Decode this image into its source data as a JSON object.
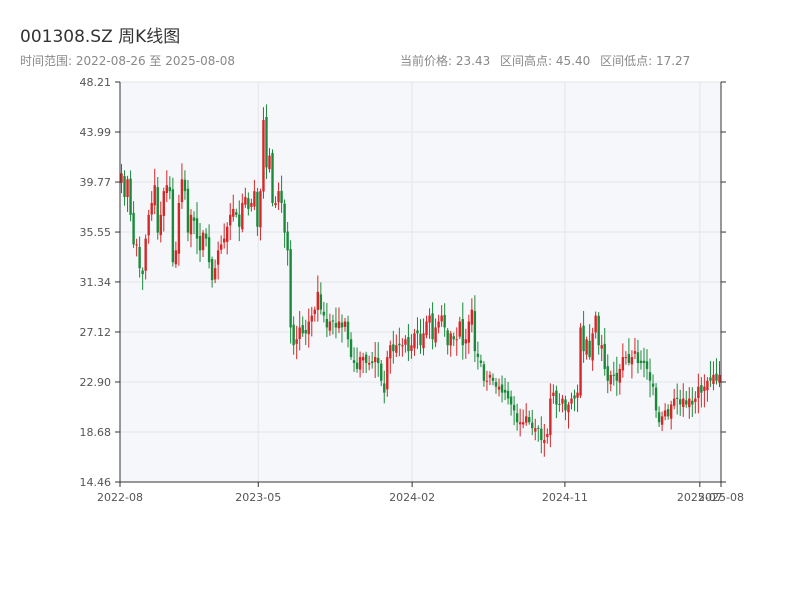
{
  "header": {
    "title": "001308.SZ 周K线图",
    "range_text": "时间范围: 2022-08-26 至 2025-08-08",
    "current_price_text": "当前价格: 23.43",
    "high_text": "区间高点: 45.40",
    "low_text": "区间低点: 17.27"
  },
  "colors": {
    "up": "#d62728",
    "down": "#1a8a3a",
    "plot_bg": "#f5f7fa",
    "grid": "#e3e6ea",
    "axis": "#333333"
  },
  "chart_data": {
    "type": "candlestick",
    "title": "001308.SZ 周K线图",
    "xlabel": "",
    "ylabel": "",
    "ylim": [
      14.46,
      48.21
    ],
    "x_range": [
      "2022-08-26",
      "2025-08-08"
    ],
    "grid": true,
    "y_ticks": [
      "14.46",
      "18.68",
      "22.90",
      "27.12",
      "31.34",
      "35.55",
      "39.77",
      "43.99",
      "48.21"
    ],
    "x_ticks": [
      {
        "label": "2022-08",
        "date": "2022-08-26"
      },
      {
        "label": "2023-05",
        "date": "2023-05-01"
      },
      {
        "label": "2024-02",
        "date": "2024-02-01"
      },
      {
        "label": "2024-11",
        "date": "2024-11-01"
      },
      {
        "label": "2025-07",
        "date": "2025-07-01"
      },
      {
        "label": "2025-08",
        "date": "2025-08-08"
      }
    ],
    "weekly_close": [
      40.5,
      38.5,
      40,
      37,
      34.5,
      34.5,
      32.5,
      32,
      35,
      37,
      38,
      39.5,
      35.5,
      37,
      39,
      39.5,
      39,
      33,
      34,
      38,
      40,
      39,
      35.5,
      37,
      36.5,
      35,
      34,
      35.5,
      35,
      33,
      31.5,
      32.5,
      34,
      34.5,
      35,
      36,
      37,
      37.5,
      37,
      36,
      38,
      38.5,
      37.5,
      38,
      39,
      36,
      39,
      45,
      41,
      42,
      38,
      38,
      39,
      38,
      35.5,
      34,
      27.5,
      26,
      26.5,
      27.5,
      27,
      27,
      28,
      28.5,
      29,
      30.5,
      29,
      28.5,
      27.5,
      28,
      28,
      27.5,
      28,
      27.5,
      28,
      26.5,
      25,
      24.5,
      24,
      25,
      25,
      24.5,
      24.5,
      24.5,
      25,
      24.5,
      23,
      22,
      25,
      26,
      25.5,
      26,
      26,
      26,
      26.5,
      25.5,
      26,
      27,
      27,
      26,
      27,
      28,
      28.5,
      26.5,
      27.5,
      28,
      28.5,
      27.5,
      26,
      27,
      26.5,
      26.5,
      28,
      26,
      26.5,
      28,
      29,
      25.5,
      25,
      24.5,
      23,
      23,
      23.5,
      23,
      22.5,
      22.5,
      22,
      22,
      21.5,
      21,
      20.5,
      19.5,
      19.5,
      19.5,
      20,
      19.5,
      19,
      19,
      19,
      18,
      18,
      18.5,
      21.5,
      22,
      21,
      21,
      21.5,
      20.5,
      21,
      21.5,
      21.5,
      22,
      27.5,
      25.5,
      26.5,
      25,
      27,
      28.5,
      26,
      26,
      24,
      23,
      23.5,
      23.5,
      23,
      24,
      25,
      25,
      24.5,
      25,
      25.5,
      24.5,
      24.5,
      24.5,
      24,
      23,
      22.5,
      20.5,
      19.5,
      20,
      20.5,
      20,
      21,
      21.5,
      21.5,
      21,
      21.5,
      21,
      21.5,
      21,
      21.5,
      22.5,
      22,
      22.5,
      23,
      23,
      23.5,
      23,
      23.5
    ]
  }
}
